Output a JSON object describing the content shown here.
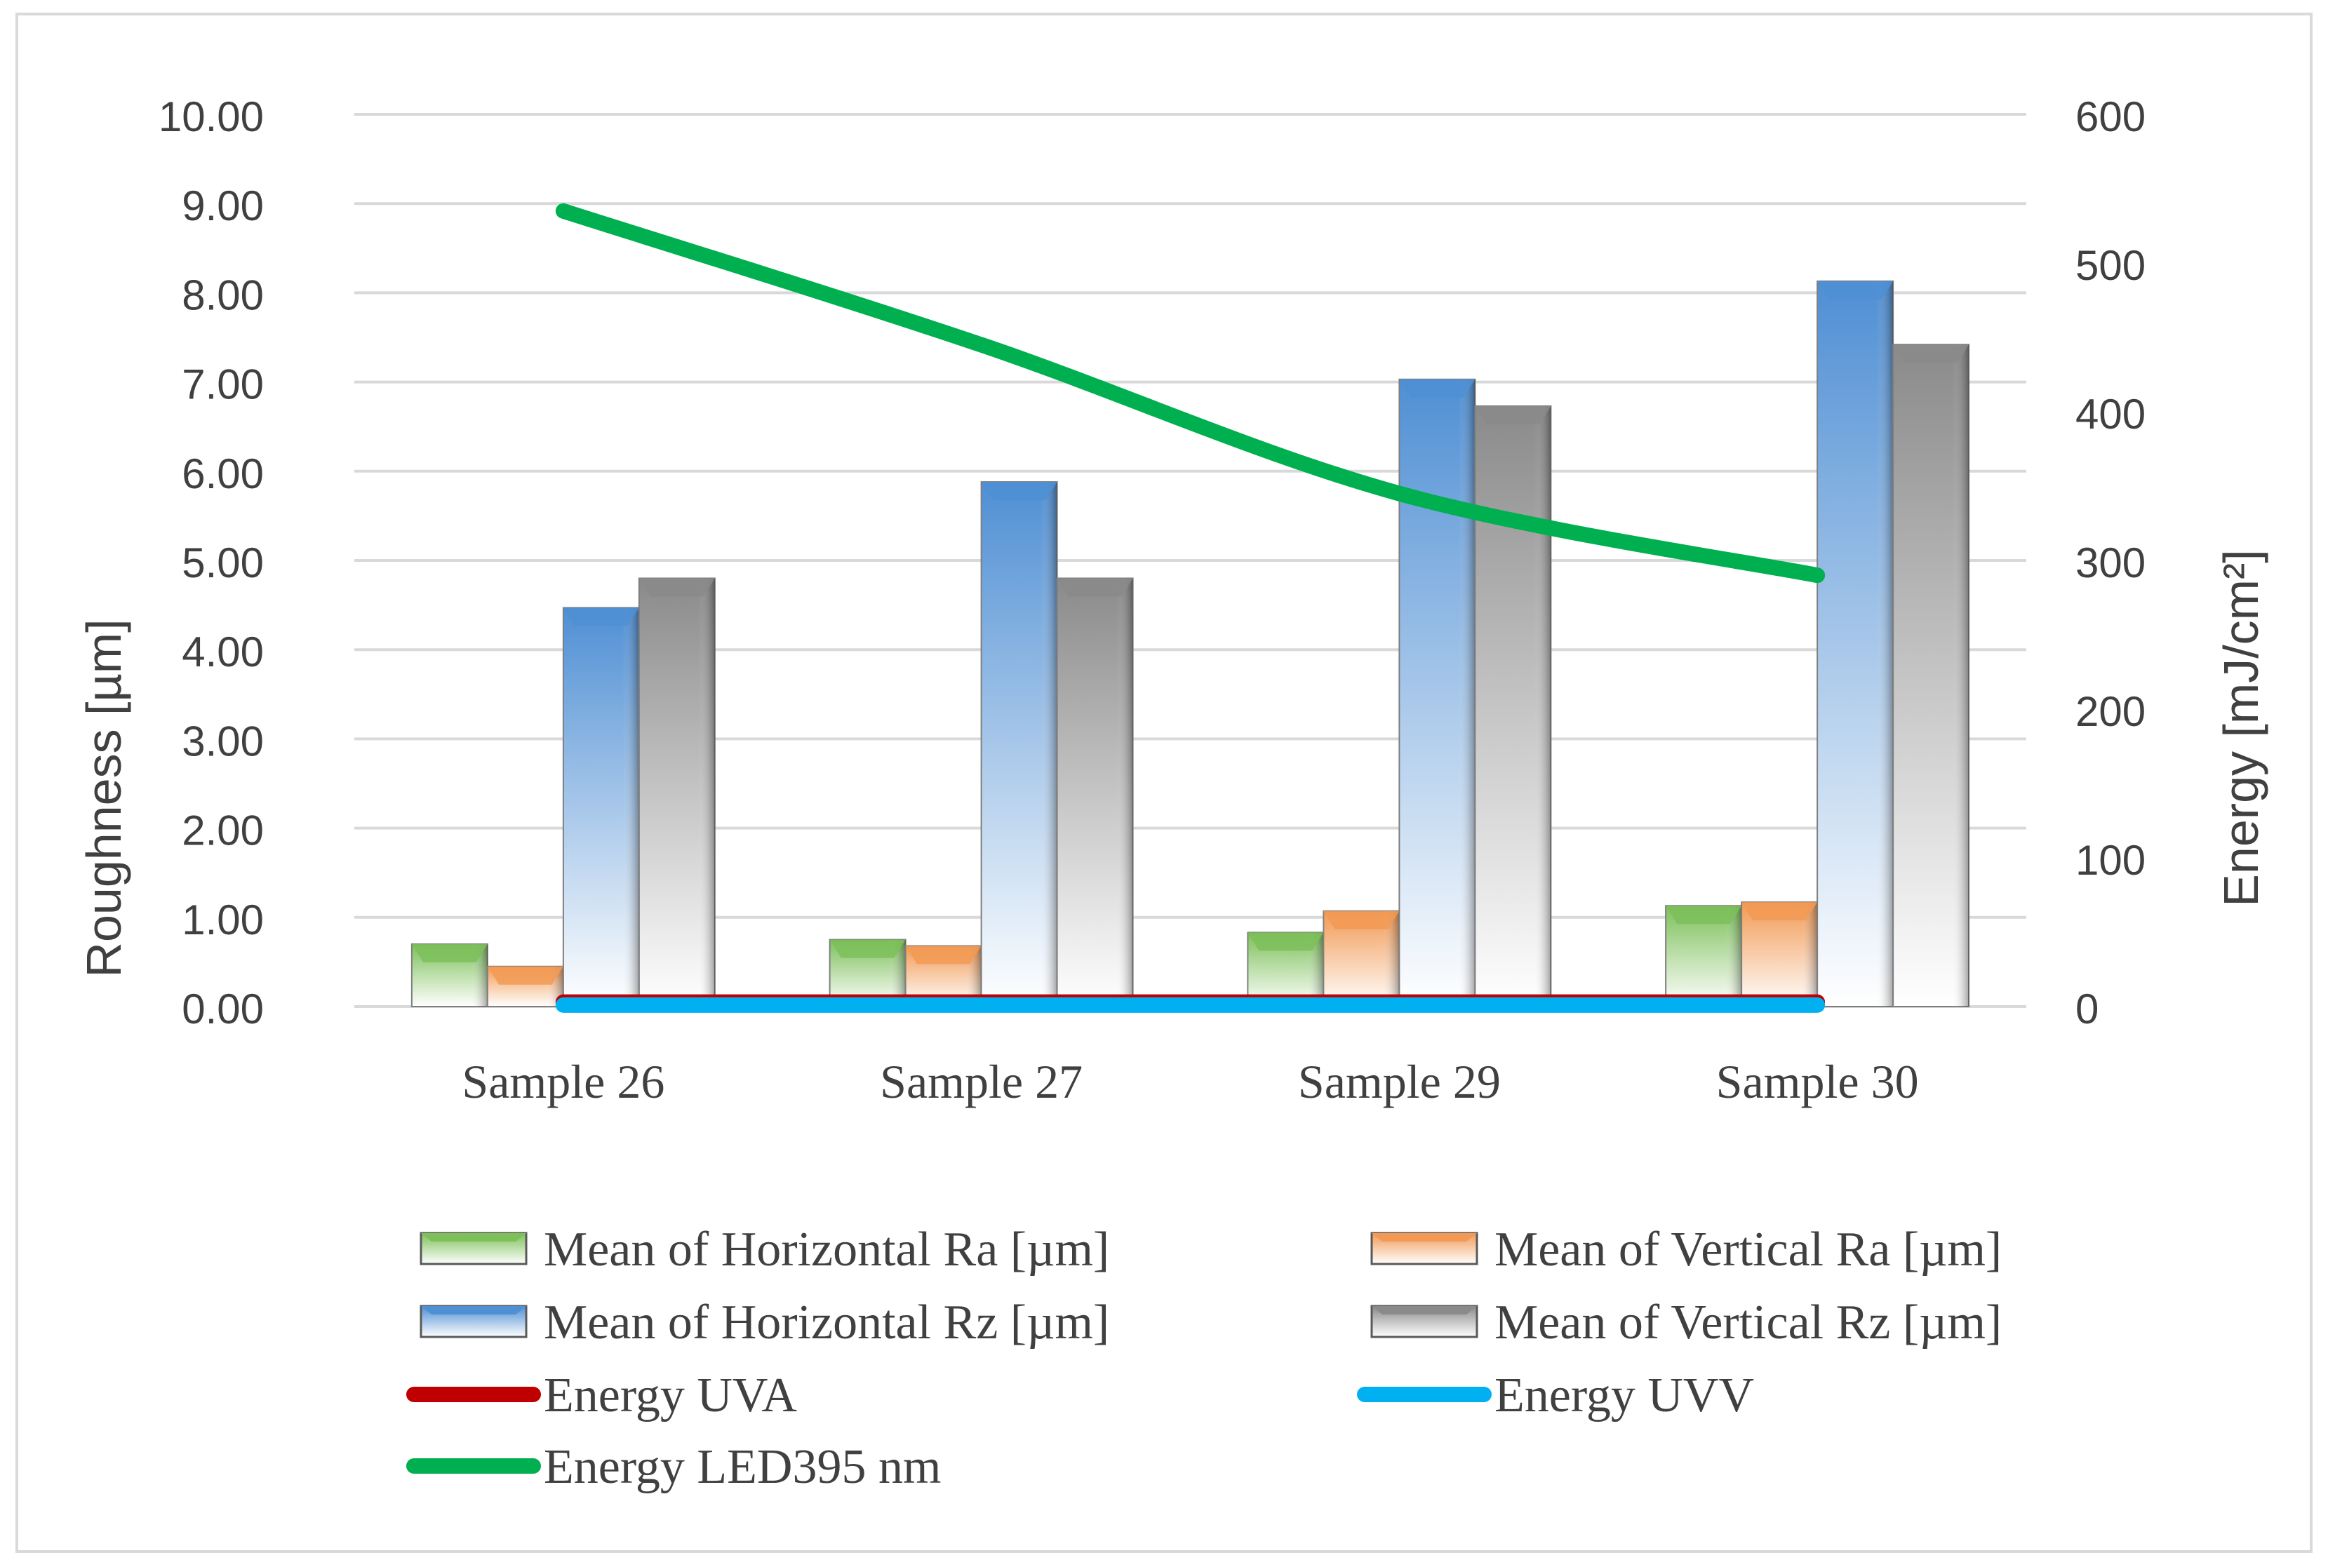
{
  "chart_data": {
    "type": "bar",
    "categories": [
      "Sample 26",
      "Sample 27",
      "Sample 29",
      "Sample 30"
    ],
    "y_left": {
      "label": "Roughness [µm]",
      "ylim": [
        0,
        10
      ],
      "ticks": [
        "0.00",
        "1.00",
        "2.00",
        "3.00",
        "4.00",
        "5.00",
        "6.00",
        "7.00",
        "8.00",
        "9.00",
        "10.00"
      ]
    },
    "y_right": {
      "label": "Energy  [mJ/cm²]",
      "ylim": [
        0,
        600
      ],
      "ticks": [
        "0",
        "100",
        "200",
        "300",
        "400",
        "500",
        "600"
      ]
    },
    "series": [
      {
        "name": "Mean of Horizontal Ra [µm]",
        "kind": "bar",
        "axis": "left",
        "values": [
          0.7,
          0.75,
          0.83,
          1.13
        ],
        "color": "#7dc05a",
        "gradient_end": "#ffffff"
      },
      {
        "name": "Mean of Vertical Ra [µm]",
        "kind": "bar",
        "axis": "left",
        "values": [
          0.45,
          0.68,
          1.07,
          1.17
        ],
        "color": "#f29a55",
        "gradient_end": "#ffffff"
      },
      {
        "name": "Mean of Horizontal Rz [µm]",
        "kind": "bar",
        "axis": "left",
        "values": [
          4.47,
          5.88,
          7.03,
          8.13
        ],
        "color": "#4f8fd4",
        "gradient_end": "#ffffff"
      },
      {
        "name": "Mean of Vertical Rz [µm]",
        "kind": "bar",
        "axis": "left",
        "values": [
          4.8,
          4.8,
          6.73,
          7.42
        ],
        "color": "#8a8a8a",
        "gradient_end": "#ffffff"
      },
      {
        "name": "Energy UVA",
        "kind": "line",
        "axis": "right",
        "values": [
          3,
          3,
          3,
          3
        ],
        "color": "#c00000"
      },
      {
        "name": "Energy UVV",
        "kind": "line",
        "axis": "right",
        "values": [
          1,
          1,
          1,
          1
        ],
        "color": "#00b0f0"
      },
      {
        "name": "Energy LED395  nm",
        "kind": "line",
        "axis": "right",
        "values": [
          535,
          445,
          345,
          290
        ],
        "color": "#00b050"
      }
    ],
    "grid": true,
    "legend": "bottom"
  }
}
